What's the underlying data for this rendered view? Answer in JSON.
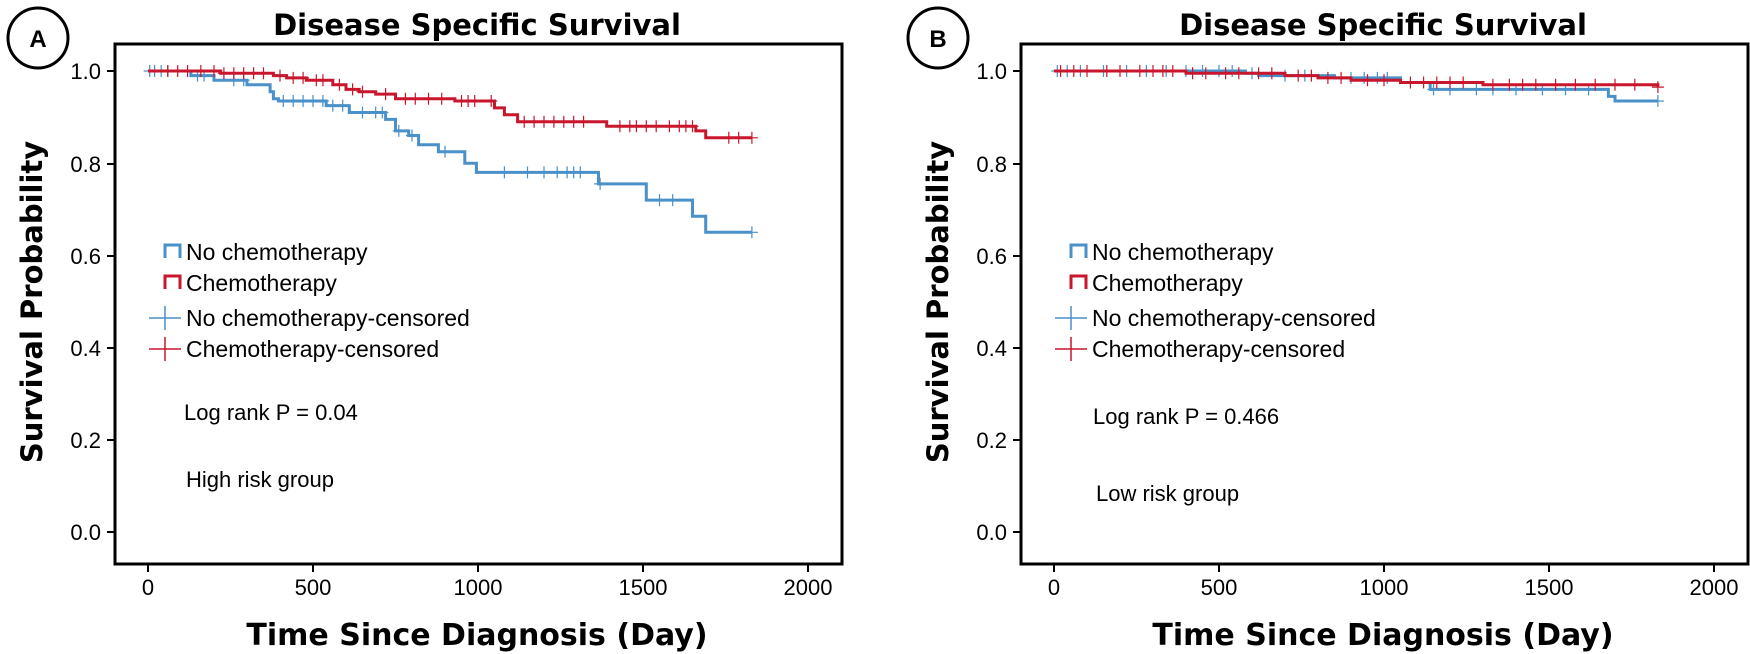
{
  "colors": {
    "no_chemo": "#4a90c9",
    "chemo": "#c8162d",
    "axis": "#000000"
  },
  "chart_data": [
    {
      "type": "line",
      "panel_label": "A",
      "title": "Disease Specific Survival",
      "xlabel": "Time Since Diagnosis (Day)",
      "ylabel": "Survival Probability",
      "xlim": [
        -100,
        2100
      ],
      "ylim": [
        -0.04,
        1.06
      ],
      "xticks": [
        "0",
        "500",
        "1000",
        "1500",
        "2000"
      ],
      "xtick_values": [
        0,
        500,
        1000,
        1500,
        2000
      ],
      "yticks": [
        "0.0",
        "0.2",
        "0.4",
        "0.6",
        "0.8",
        "1.0"
      ],
      "ytick_values": [
        0,
        0.2,
        0.4,
        0.6,
        0.8,
        1.0
      ],
      "legend": [
        "No chemotherapy",
        "Chemotherapy",
        "No chemotherapy-censored",
        "Chemotherapy-censored"
      ],
      "annotation": "Log rank P = 0.04",
      "group_label": "High risk group",
      "series": [
        {
          "name": "No chemotherapy",
          "color_key": "no_chemo",
          "steps": [
            [
              0,
              1.0
            ],
            [
              130,
              0.99
            ],
            [
              200,
              0.98
            ],
            [
              300,
              0.97
            ],
            [
              370,
              0.955
            ],
            [
              380,
              0.94
            ],
            [
              395,
              0.935
            ],
            [
              540,
              0.925
            ],
            [
              610,
              0.91
            ],
            [
              720,
              0.895
            ],
            [
              750,
              0.87
            ],
            [
              790,
              0.86
            ],
            [
              820,
              0.84
            ],
            [
              880,
              0.825
            ],
            [
              960,
              0.8
            ],
            [
              995,
              0.78
            ],
            [
              1365,
              0.755
            ],
            [
              1510,
              0.72
            ],
            [
              1650,
              0.685
            ],
            [
              1690,
              0.65
            ],
            [
              1830,
              0.65
            ]
          ],
          "censored": [
            5,
            20,
            40,
            60,
            150,
            170,
            260,
            290,
            410,
            440,
            470,
            500,
            530,
            560,
            590,
            650,
            690,
            710,
            760,
            800,
            900,
            1080,
            1150,
            1200,
            1240,
            1270,
            1290,
            1310,
            1370,
            1550,
            1590,
            1830
          ]
        },
        {
          "name": "Chemotherapy",
          "color_key": "chemo",
          "steps": [
            [
              0,
              1.0
            ],
            [
              220,
              0.995
            ],
            [
              380,
              0.99
            ],
            [
              420,
              0.985
            ],
            [
              480,
              0.98
            ],
            [
              560,
              0.97
            ],
            [
              600,
              0.96
            ],
            [
              640,
              0.955
            ],
            [
              690,
              0.95
            ],
            [
              750,
              0.94
            ],
            [
              930,
              0.935
            ],
            [
              1050,
              0.92
            ],
            [
              1080,
              0.905
            ],
            [
              1120,
              0.89
            ],
            [
              1390,
              0.88
            ],
            [
              1660,
              0.87
            ],
            [
              1690,
              0.855
            ],
            [
              1830,
              0.855
            ]
          ],
          "censored": [
            60,
            90,
            120,
            160,
            200,
            230,
            260,
            290,
            320,
            350,
            400,
            440,
            470,
            510,
            530,
            580,
            620,
            650,
            720,
            780,
            810,
            850,
            890,
            950,
            970,
            990,
            1040,
            1140,
            1170,
            1200,
            1230,
            1260,
            1290,
            1320,
            1430,
            1460,
            1480,
            1510,
            1540,
            1580,
            1610,
            1630,
            1650,
            1760,
            1790,
            1830
          ]
        }
      ]
    },
    {
      "type": "line",
      "panel_label": "B",
      "title": "Disease Specific Survival",
      "xlabel": "Time Since Diagnosis (Day)",
      "ylabel": "Survival Probability",
      "xlim": [
        -100,
        2100
      ],
      "ylim": [
        -0.04,
        1.06
      ],
      "xticks": [
        "0",
        "500",
        "1000",
        "1500",
        "2000"
      ],
      "xtick_values": [
        0,
        500,
        1000,
        1500,
        2000
      ],
      "yticks": [
        "0.0",
        "0.2",
        "0.4",
        "0.6",
        "0.8",
        "1.0"
      ],
      "ytick_values": [
        0,
        0.2,
        0.4,
        0.6,
        0.8,
        1.0
      ],
      "legend": [
        "No chemotherapy",
        "Chemotherapy",
        "No chemotherapy-censored",
        "Chemotherapy-censored"
      ],
      "annotation": "Log rank P = 0.466",
      "group_label": "Low risk group",
      "series": [
        {
          "name": "No chemotherapy",
          "color_key": "no_chemo",
          "steps": [
            [
              0,
              1.0
            ],
            [
              580,
              0.995
            ],
            [
              620,
              0.99
            ],
            [
              850,
              0.985
            ],
            [
              1050,
              0.975
            ],
            [
              1140,
              0.96
            ],
            [
              1680,
              0.945
            ],
            [
              1700,
              0.935
            ],
            [
              1830,
              0.935
            ]
          ],
          "censored": [
            10,
            40,
            80,
            150,
            220,
            280,
            340,
            400,
            450,
            500,
            540,
            600,
            700,
            760,
            900,
            940,
            980,
            1010,
            1150,
            1200,
            1280,
            1330,
            1400,
            1480,
            1550,
            1620,
            1830
          ]
        },
        {
          "name": "Chemotherapy",
          "color_key": "chemo",
          "steps": [
            [
              0,
              1.0
            ],
            [
              400,
              0.995
            ],
            [
              700,
              0.99
            ],
            [
              800,
              0.985
            ],
            [
              900,
              0.98
            ],
            [
              1050,
              0.975
            ],
            [
              1300,
              0.97
            ],
            [
              1830,
              0.965
            ]
          ],
          "censored": [
            20,
            60,
            100,
            160,
            200,
            260,
            300,
            330,
            360,
            420,
            460,
            520,
            560,
            620,
            660,
            740,
            780,
            830,
            870,
            950,
            1000,
            1080,
            1120,
            1160,
            1200,
            1240,
            1330,
            1380,
            1420,
            1460,
            1520,
            1580,
            1640,
            1700,
            1760,
            1830
          ]
        }
      ]
    }
  ]
}
